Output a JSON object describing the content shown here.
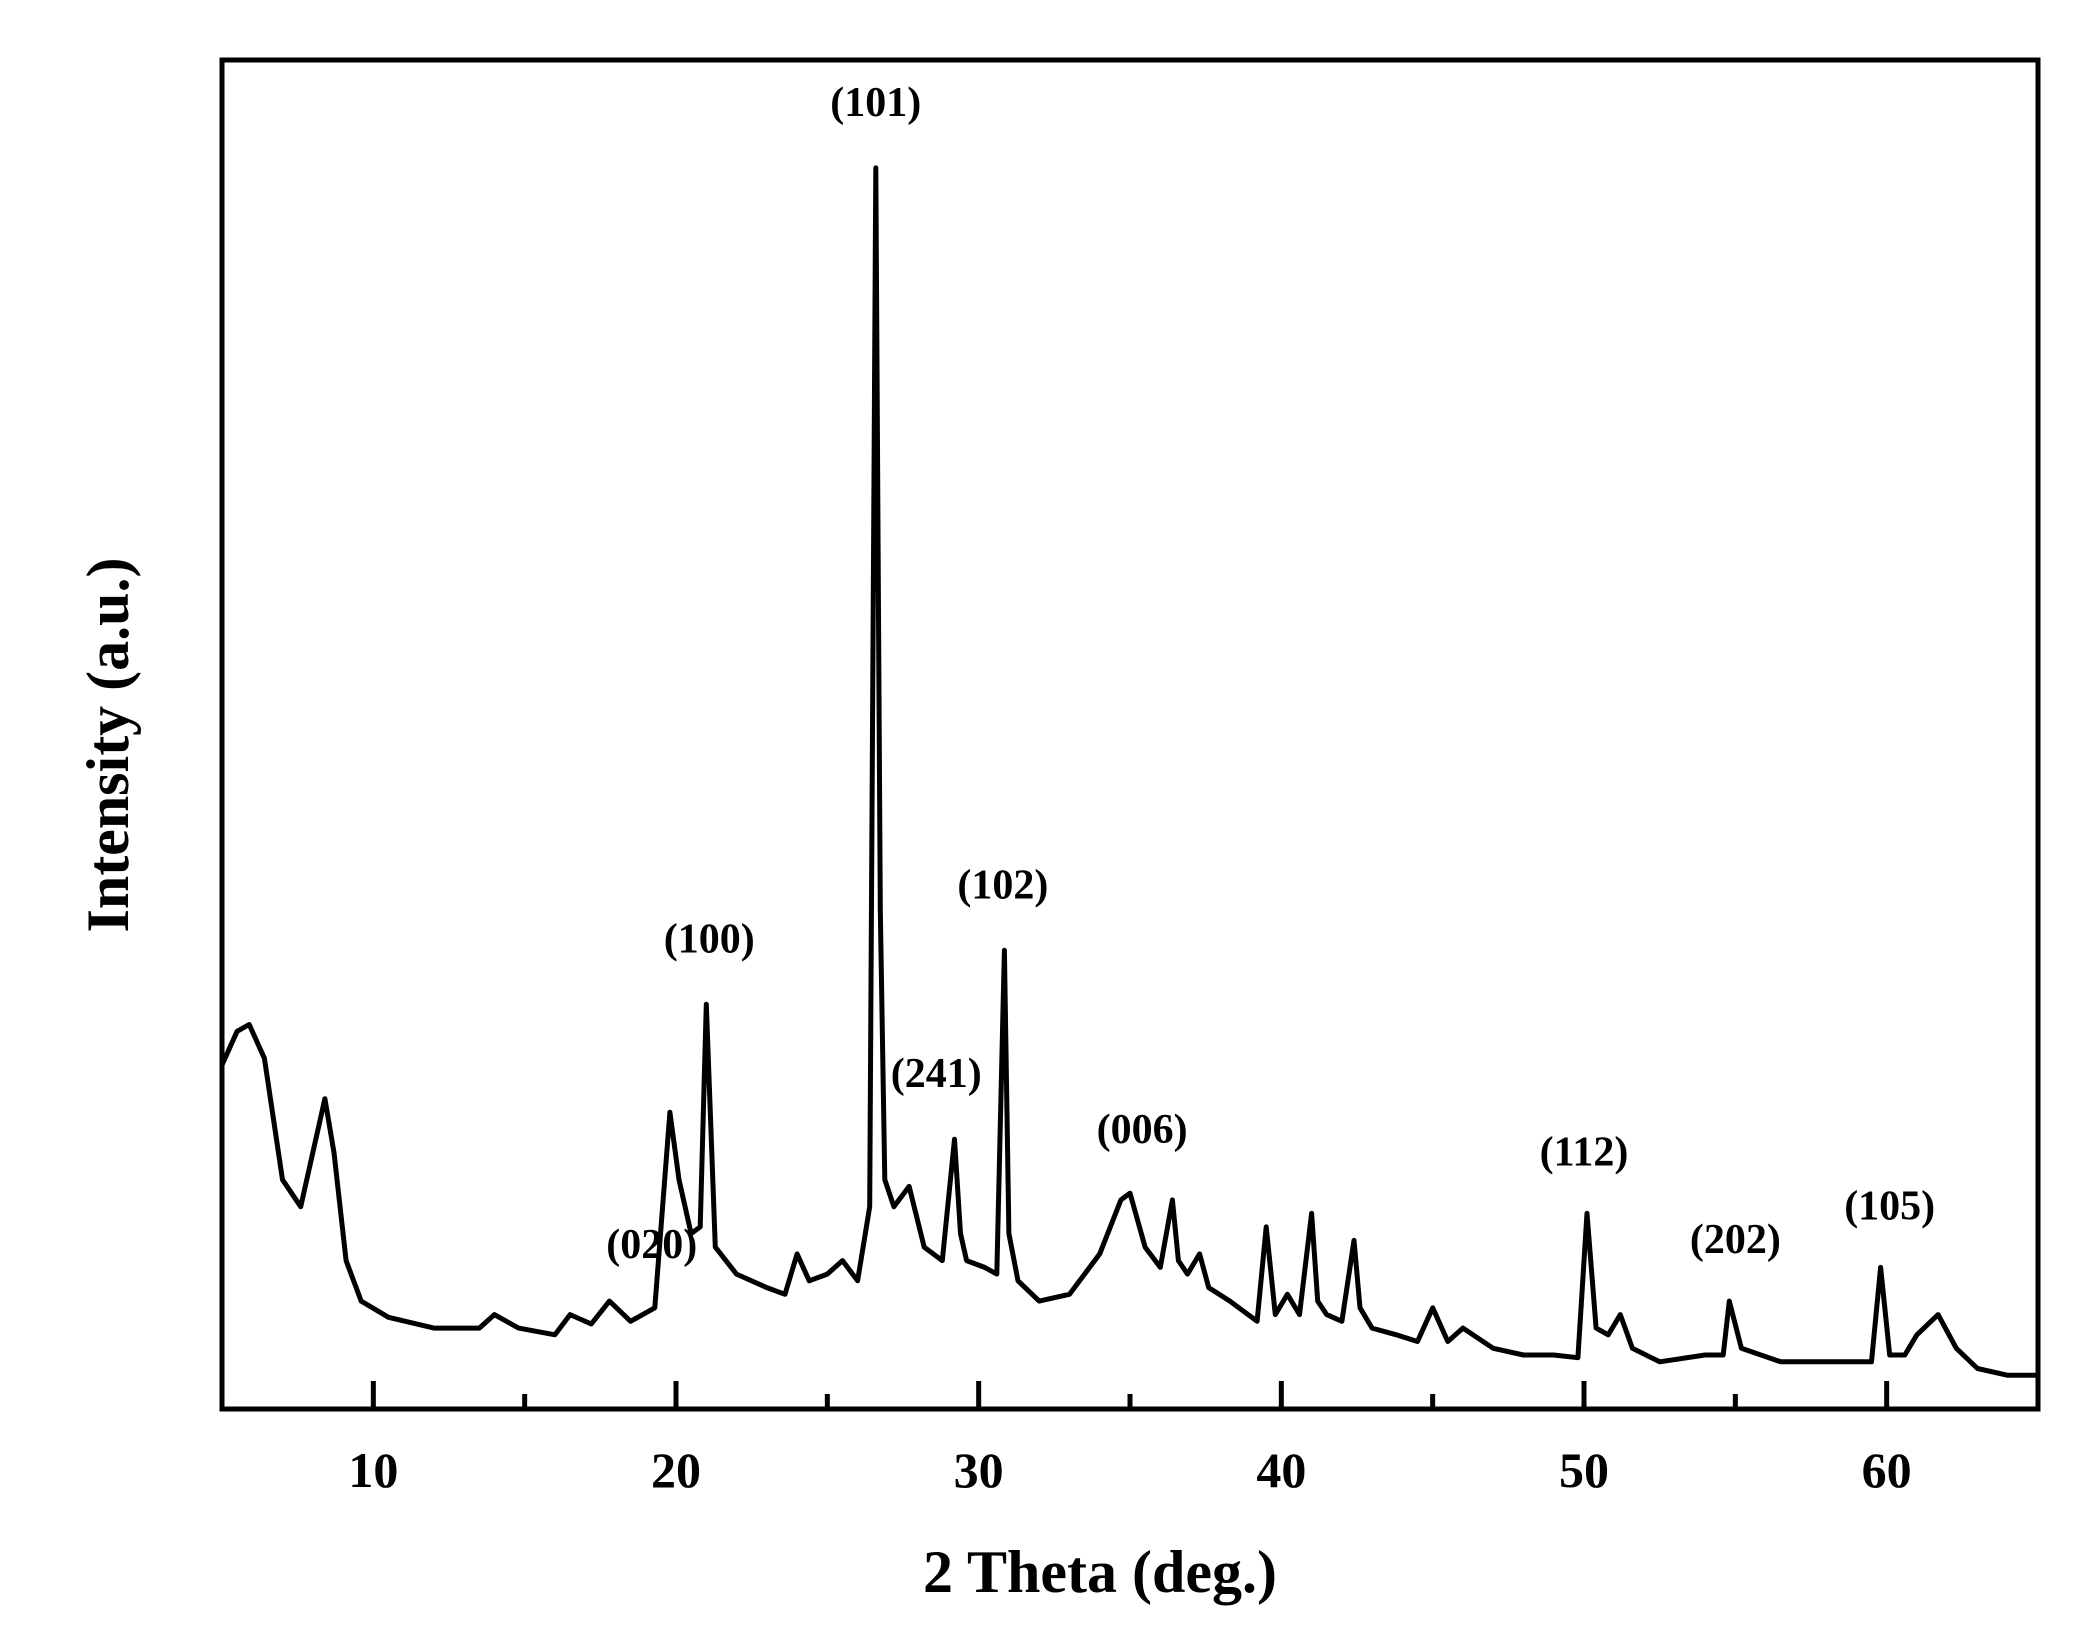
{
  "chart_data": {
    "type": "line",
    "title": "",
    "xlabel": "2 Theta (deg.)",
    "ylabel": "Intensity (a.u.)",
    "xlim": [
      5,
      65
    ],
    "ylim": [
      0,
      100
    ],
    "x_ticks": [
      10,
      20,
      30,
      40,
      50,
      60
    ],
    "x_minor_ticks": [
      15,
      25,
      35,
      45,
      55
    ],
    "y_ticks_shown": false,
    "grid": false,
    "legend": "none",
    "line_color": "#000000",
    "series": [
      {
        "x": [
          5.0,
          5.5,
          5.9,
          6.4,
          7.0,
          7.6,
          8.0,
          8.4,
          8.7,
          9.1,
          9.6,
          10.5,
          12.0,
          13.5,
          14.0,
          14.8,
          16.0,
          16.5,
          17.2,
          17.8,
          18.5,
          19.3,
          19.8,
          20.1,
          20.5,
          20.8,
          21.0,
          21.3,
          22.0,
          23.0,
          23.6,
          24.0,
          24.4,
          25.0,
          25.5,
          26.0,
          26.4,
          26.6,
          26.75,
          26.9,
          27.2,
          27.7,
          28.2,
          28.8,
          29.2,
          29.4,
          29.6,
          30.2,
          30.6,
          30.85,
          31.0,
          31.3,
          32.0,
          33.0,
          34.0,
          34.7,
          35.0,
          35.5,
          36.0,
          36.4,
          36.6,
          36.9,
          37.3,
          37.6,
          38.3,
          39.2,
          39.5,
          39.8,
          40.2,
          40.6,
          41.0,
          41.2,
          41.5,
          42.0,
          42.4,
          42.6,
          43.0,
          43.8,
          44.5,
          45.0,
          45.5,
          46.0,
          47.0,
          48.0,
          49.0,
          49.8,
          50.1,
          50.4,
          50.8,
          51.2,
          51.6,
          52.5,
          54.0,
          54.6,
          54.8,
          55.2,
          56.5,
          58.0,
          59.5,
          59.8,
          60.1,
          60.6,
          61.0,
          61.7,
          62.3,
          63.0,
          64.0,
          65.0
        ],
        "y": [
          25.5,
          28.0,
          28.5,
          26.0,
          17.0,
          15.0,
          19.0,
          23.0,
          19.0,
          11.0,
          8.0,
          6.8,
          6.0,
          6.0,
          7.0,
          6.0,
          5.5,
          7.0,
          6.3,
          8.0,
          6.5,
          7.5,
          22.0,
          17.0,
          13.0,
          13.5,
          30.0,
          12.0,
          10.0,
          9.0,
          8.5,
          11.5,
          9.5,
          10.0,
          11.0,
          9.5,
          15.0,
          92.0,
          37.0,
          17.0,
          15.0,
          16.5,
          12.0,
          11.0,
          20.0,
          13.0,
          11.0,
          10.5,
          10.0,
          34.0,
          13.0,
          9.5,
          8.0,
          8.5,
          11.5,
          15.5,
          16.0,
          12.0,
          10.5,
          15.5,
          11.0,
          10.0,
          11.5,
          9.0,
          8.0,
          6.5,
          13.5,
          7.0,
          8.5,
          7.0,
          14.5,
          8.0,
          7.0,
          6.5,
          12.5,
          7.5,
          6.0,
          5.5,
          5.0,
          7.5,
          5.0,
          6.0,
          4.5,
          4.0,
          4.0,
          3.8,
          14.5,
          6.0,
          5.5,
          7.0,
          4.5,
          3.5,
          4.0,
          4.0,
          8.0,
          4.5,
          3.5,
          3.5,
          3.5,
          10.5,
          4.0,
          4.0,
          5.5,
          7.0,
          4.5,
          3.0,
          2.5,
          2.5
        ]
      }
    ],
    "annotations": [
      {
        "text": "(101)",
        "x": 26.6
      },
      {
        "text": "(100)",
        "x": 21.1
      },
      {
        "text": "(020)",
        "x": 19.2
      },
      {
        "text": "(241)",
        "x": 28.6
      },
      {
        "text": "(102)",
        "x": 30.8
      },
      {
        "text": "(006)",
        "x": 35.4
      },
      {
        "text": "(112)",
        "x": 50.0
      },
      {
        "text": "(202)",
        "x": 55.0
      },
      {
        "text": "(105)",
        "x": 60.1
      }
    ]
  }
}
